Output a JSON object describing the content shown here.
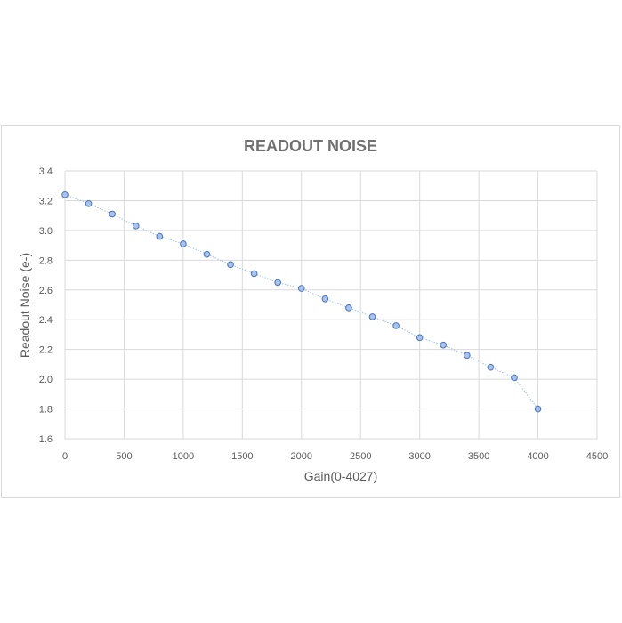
{
  "chart_data": {
    "type": "line",
    "title": "READOUT NOISE",
    "xlabel": "Gain(0-4027)",
    "ylabel": "Readout Noise (e-)",
    "xlim": [
      0,
      4500
    ],
    "ylim": [
      1.6,
      3.4
    ],
    "xticks": [
      "0",
      "500",
      "1000",
      "1500",
      "2000",
      "2500",
      "3000",
      "3500",
      "4000",
      "4500"
    ],
    "yticks": [
      "1.6",
      "1.8",
      "2.0",
      "2.2",
      "2.4",
      "2.6",
      "2.8",
      "3.0",
      "3.2",
      "3.4"
    ],
    "grid": true,
    "series": [
      {
        "name": "Readout Noise",
        "color": "#4472c4",
        "x": [
          0,
          200,
          400,
          600,
          800,
          1000,
          1200,
          1400,
          1600,
          1800,
          2000,
          2200,
          2400,
          2600,
          2800,
          3000,
          3200,
          3400,
          3600,
          3800,
          4000
        ],
        "y": [
          3.24,
          3.18,
          3.11,
          3.03,
          2.96,
          2.91,
          2.84,
          2.77,
          2.71,
          2.65,
          2.61,
          2.54,
          2.48,
          2.42,
          2.36,
          2.28,
          2.23,
          2.16,
          2.08,
          2.01,
          1.8
        ]
      }
    ]
  }
}
